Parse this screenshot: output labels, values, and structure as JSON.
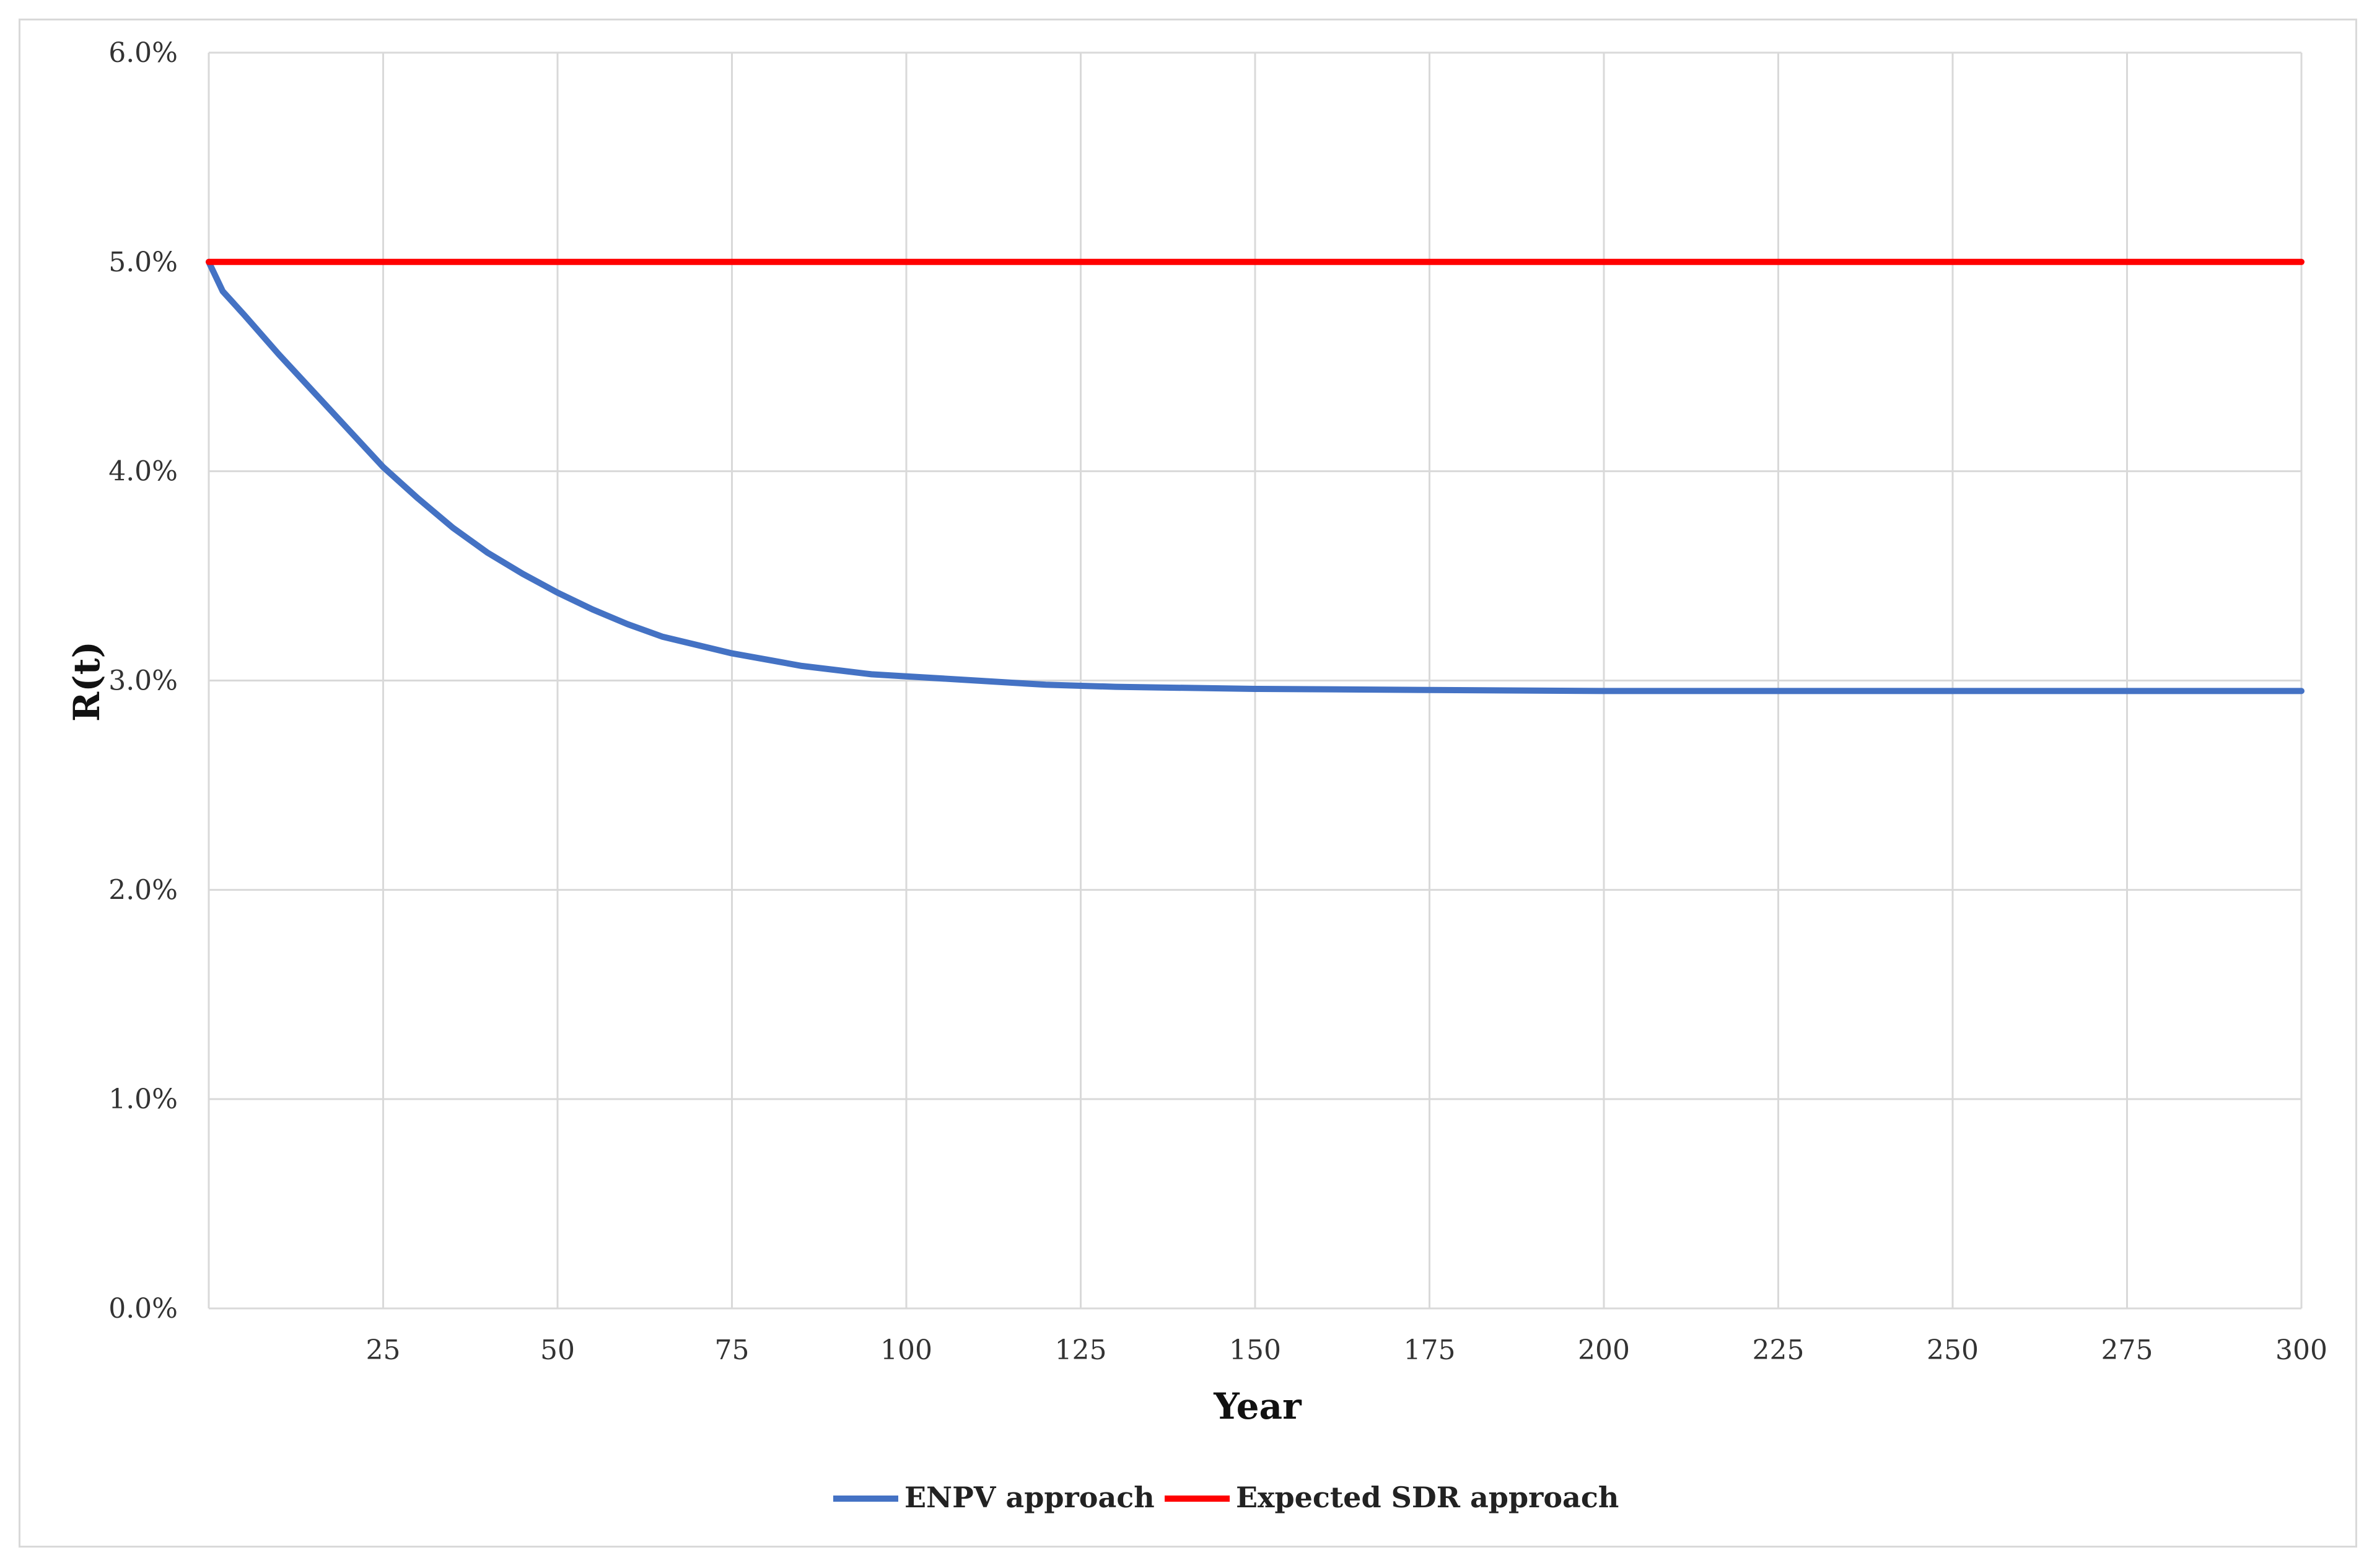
{
  "chart_data": {
    "type": "line",
    "xlabel": "Year",
    "ylabel": "R(t)",
    "xlim": [
      0,
      300
    ],
    "ylim": [
      0.0,
      6.0
    ],
    "x_ticks": [
      25,
      50,
      75,
      100,
      125,
      150,
      175,
      200,
      225,
      250,
      275,
      300
    ],
    "y_ticks": [
      "0.0%",
      "1.0%",
      "2.0%",
      "3.0%",
      "4.0%",
      "5.0%",
      "6.0%"
    ],
    "y_tick_values": [
      0,
      1,
      2,
      3,
      4,
      5,
      6
    ],
    "grid": true,
    "legend_position": "bottom",
    "series": [
      {
        "name": "ENPV approach",
        "color": "#4472C4",
        "x": [
          0,
          2,
          5,
          10,
          15,
          20,
          25,
          30,
          35,
          40,
          45,
          50,
          55,
          60,
          65,
          70,
          75,
          80,
          85,
          90,
          95,
          100,
          110,
          120,
          130,
          140,
          150,
          175,
          200,
          225,
          250,
          275,
          300
        ],
        "values": [
          5.0,
          4.86,
          4.75,
          4.56,
          4.38,
          4.2,
          4.02,
          3.87,
          3.73,
          3.61,
          3.51,
          3.42,
          3.34,
          3.27,
          3.21,
          3.17,
          3.13,
          3.1,
          3.07,
          3.05,
          3.03,
          3.02,
          3.0,
          2.98,
          2.97,
          2.965,
          2.96,
          2.955,
          2.95,
          2.95,
          2.95,
          2.95,
          2.95
        ]
      },
      {
        "name": "Expected SDR approach",
        "color": "#FF0000",
        "x": [
          0,
          300
        ],
        "values": [
          5.0,
          5.0
        ]
      }
    ]
  }
}
